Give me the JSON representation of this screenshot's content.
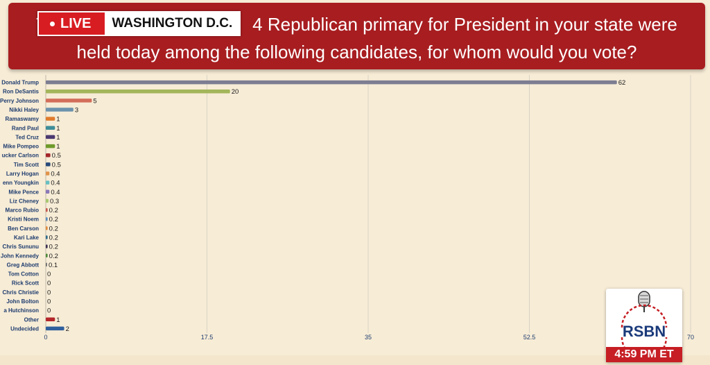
{
  "overlay": {
    "live_label": "LIVE",
    "location": "WASHINGTON D.C.",
    "logo_text": "RSBN",
    "time": "4:59 PM ET"
  },
  "question": {
    "line1": "Th                                       4 Republican primary for President in your state were",
    "line2": "held today among the following candidates, for whom would you vote?"
  },
  "colors": {
    "banner": "#a71d20",
    "background": "#f7ecd6",
    "grid": "#d8d2c4"
  },
  "chart_data": {
    "type": "bar",
    "orientation": "horizontal",
    "title": "",
    "xlabel": "",
    "ylabel": "",
    "xlim": [
      0,
      70
    ],
    "xticks": [
      "0",
      "17.5",
      "35",
      "52.5",
      "70"
    ],
    "grid": true,
    "categories": [
      "Donald Trump",
      "Ron DeSantis",
      "Perry Johnson",
      "Nikki Haley",
      "Ramaswamy",
      "Rand Paul",
      "Ted Cruz",
      "Mike Pompeo",
      "ucker Carlson",
      "Tim Scott",
      "Larry Hogan",
      "enn Youngkin",
      "Mike Pence",
      "Liz Cheney",
      "Marco Rubio",
      "Kristi Noem",
      "Ben Carson",
      "Kari Lake",
      "Chris Sununu",
      "John Kennedy",
      "Greg Abbott",
      "Tom Cotton",
      "Rick Scott",
      "Chris Christie",
      "John Bolton",
      "a Hutchinson",
      "Other",
      "Undecided"
    ],
    "values": [
      62,
      20,
      5,
      3,
      1,
      1,
      1,
      1,
      0.5,
      0.5,
      0.4,
      0.4,
      0.4,
      0.3,
      0.2,
      0.2,
      0.2,
      0.2,
      0.2,
      0.2,
      0.1,
      0,
      0,
      0,
      0,
      0,
      1,
      2
    ],
    "value_labels": [
      "62",
      "20",
      "5",
      "3",
      "1",
      "1",
      "1",
      "1",
      "0.5",
      "0.5",
      "0.4",
      "0.4",
      "0.4",
      "0.3",
      "0.2",
      "0.2",
      "0.2",
      "0.2",
      "0.2",
      "0.2",
      "0.1",
      "0",
      "0",
      "0",
      "0",
      "0",
      "1",
      "2"
    ],
    "bar_colors": [
      "#7d7d92",
      "#a3b65a",
      "#d36e5a",
      "#6c93ad",
      "#e07b2c",
      "#3f8e99",
      "#4b3970",
      "#6f9a2c",
      "#a3262b",
      "#284b7a",
      "#e0944a",
      "#66bfc2",
      "#8a78b8",
      "#a8c870",
      "#c8584e",
      "#5a8ec0",
      "#e28b3b",
      "#2d6b8c",
      "#3f3254",
      "#4e8a3a",
      "#777777",
      "#777777",
      "#777777",
      "#777777",
      "#777777",
      "#777777",
      "#b3262a",
      "#2f5f9c"
    ]
  }
}
